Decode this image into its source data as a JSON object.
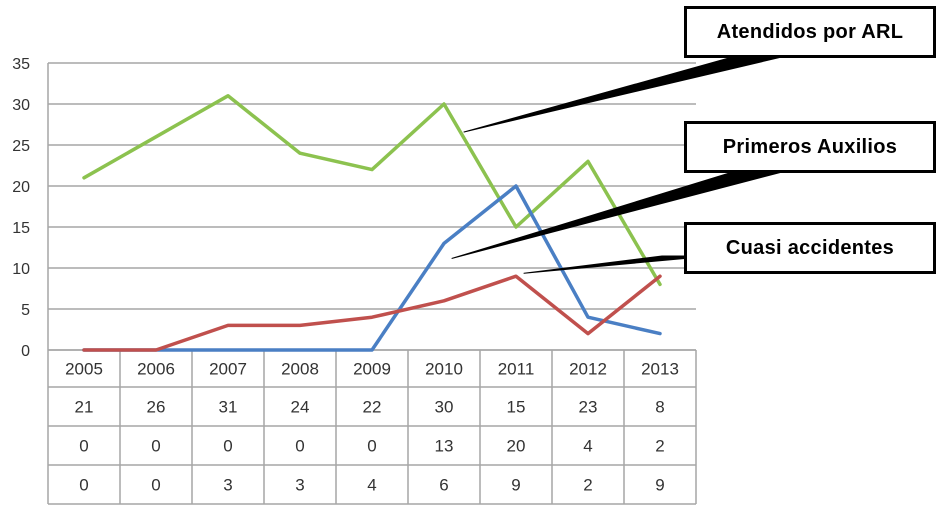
{
  "chart_data": {
    "type": "line",
    "categories": [
      "2005",
      "2006",
      "2007",
      "2008",
      "2009",
      "2010",
      "2011",
      "2012",
      "2013"
    ],
    "series": [
      {
        "name": "Atendidos por ARL",
        "values": [
          21,
          26,
          31,
          24,
          22,
          30,
          15,
          23,
          8
        ],
        "color": "#8cc24f"
      },
      {
        "name": "Primeros Auxilios",
        "values": [
          0,
          0,
          0,
          0,
          0,
          13,
          20,
          4,
          2
        ],
        "color": "#4a7fc4"
      },
      {
        "name": "Cuasi accidentes",
        "values": [
          0,
          0,
          3,
          3,
          4,
          6,
          9,
          2,
          9
        ],
        "color": "#c0504d"
      }
    ],
    "ylim": [
      0,
      35
    ],
    "yticks": [
      "0",
      "5",
      "10",
      "15",
      "20",
      "25",
      "30",
      "35"
    ],
    "grid": true,
    "data_table": [
      [
        "21",
        "26",
        "31",
        "24",
        "22",
        "30",
        "15",
        "23",
        "8"
      ],
      [
        "0",
        "0",
        "0",
        "0",
        "0",
        "13",
        "20",
        "4",
        "2"
      ],
      [
        "0",
        "0",
        "3",
        "3",
        "4",
        "6",
        "9",
        "2",
        "9"
      ]
    ]
  }
}
